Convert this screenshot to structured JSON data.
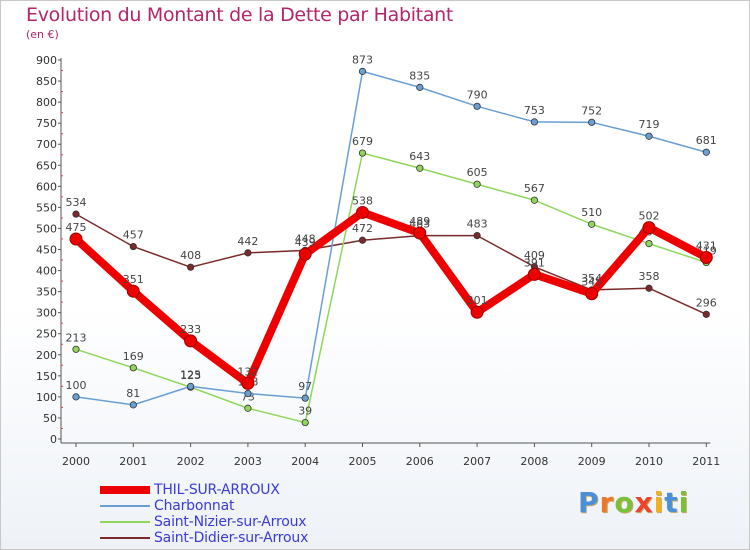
{
  "title": "Evolution du Montant de la Dette par Habitant",
  "subtitle": "(en €)",
  "logo": {
    "text": "Proxiti",
    "letters": [
      {
        "ch": "P",
        "color": "#4a90d9"
      },
      {
        "ch": "r",
        "color": "#e87b2a"
      },
      {
        "ch": "o",
        "color": "#7bbf3a"
      },
      {
        "ch": "x",
        "color": "#e8452a"
      },
      {
        "ch": "i",
        "color": "#f2b01e"
      },
      {
        "ch": "t",
        "color": "#4a90d9"
      },
      {
        "ch": "i",
        "color": "#7bbf3a"
      }
    ]
  },
  "chart_data": {
    "type": "line",
    "title": "Evolution du Montant de la Dette par Habitant",
    "ylabel": "(en €)",
    "xlabel": "",
    "ylim": [
      0,
      900
    ],
    "yticks": [
      0,
      50,
      100,
      150,
      200,
      250,
      300,
      350,
      400,
      450,
      500,
      550,
      600,
      650,
      700,
      750,
      800,
      850,
      900
    ],
    "grid": false,
    "legend_position": "bottom-left",
    "x": [
      "2000",
      "2001",
      "2002",
      "2003",
      "2004",
      "2005",
      "2006",
      "2007",
      "2008",
      "2009",
      "2010",
      "2011"
    ],
    "series": [
      {
        "name": "Saint-Didier-sur-Arroux",
        "color": "#7a2a2a",
        "thick": false,
        "values": [
          534,
          457,
          408,
          442,
          448,
          472,
          483,
          483,
          409,
          354,
          358,
          296
        ]
      },
      {
        "name": "Saint-Nizier-sur-Arroux",
        "color": "#8fd65a",
        "thick": false,
        "values": [
          213,
          169,
          123,
          73,
          39,
          679,
          643,
          605,
          567,
          510,
          464,
          419
        ]
      },
      {
        "name": "Charbonnat",
        "color": "#6a9fd4",
        "thick": false,
        "values": [
          100,
          81,
          125,
          108,
          97,
          873,
          835,
          790,
          753,
          752,
          719,
          681
        ]
      },
      {
        "name": "THIL-SUR-ARROUX",
        "color": "#ee0000",
        "thick": true,
        "values": [
          475,
          351,
          233,
          132,
          439,
          538,
          489,
          301,
          391,
          345,
          502,
          431
        ]
      }
    ]
  },
  "legend": [
    {
      "name": "THIL-SUR-ARROUX",
      "color": "#ee0000",
      "thick": true
    },
    {
      "name": "Charbonnat",
      "color": "#6a9fd4",
      "thick": false
    },
    {
      "name": "Saint-Nizier-sur-Arroux",
      "color": "#8fd65a",
      "thick": false
    },
    {
      "name": "Saint-Didier-sur-Arroux",
      "color": "#7a2a2a",
      "thick": false
    }
  ]
}
